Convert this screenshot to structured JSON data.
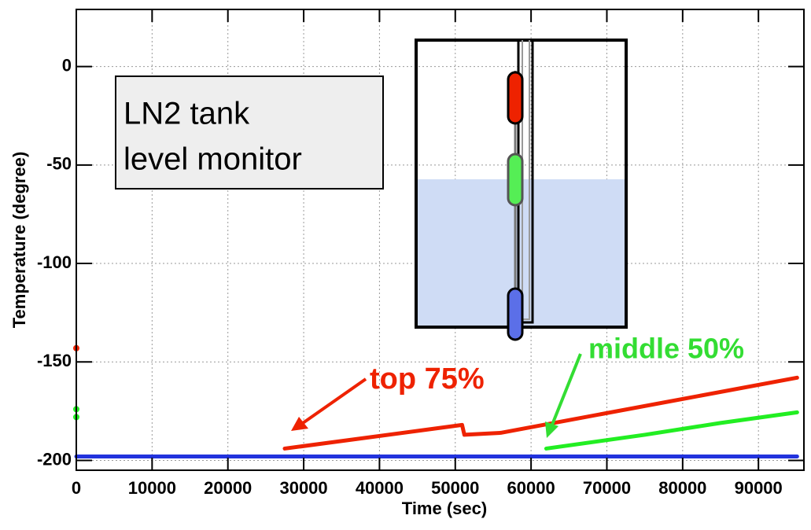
{
  "chart_data": {
    "type": "line",
    "x_label": "Time (sec)",
    "y_label": "Temperature (degree)",
    "annotation": [
      "LN2 tank",
      "level monitor"
    ],
    "xlim": [
      0,
      96000
    ],
    "xticks": [
      0,
      10000,
      20000,
      30000,
      40000,
      50000,
      60000,
      70000,
      80000,
      90000
    ],
    "ylim": [
      -205,
      29
    ],
    "yticks": [
      -200,
      -150,
      -100,
      -50,
      0
    ],
    "grid": true,
    "series": [
      {
        "name": "top 75%",
        "color": "#ee2200",
        "x": [
          0,
          null,
          27500,
          50900,
          51200,
          56000,
          95100
        ],
        "values": [
          -143,
          null,
          -194,
          -182,
          -187,
          -186,
          -158
        ]
      },
      {
        "name": "middle 50%",
        "color": "#22ee22",
        "x": [
          0,
          null,
          0,
          null,
          62000,
          75000,
          85000,
          95100
        ],
        "values": [
          -174,
          null,
          -178,
          null,
          -194,
          -187,
          -181,
          -175.6
        ]
      },
      {
        "color": "#2233dd",
        "x": [
          0,
          95100
        ],
        "values": [
          -198,
          -198
        ]
      }
    ]
  }
}
